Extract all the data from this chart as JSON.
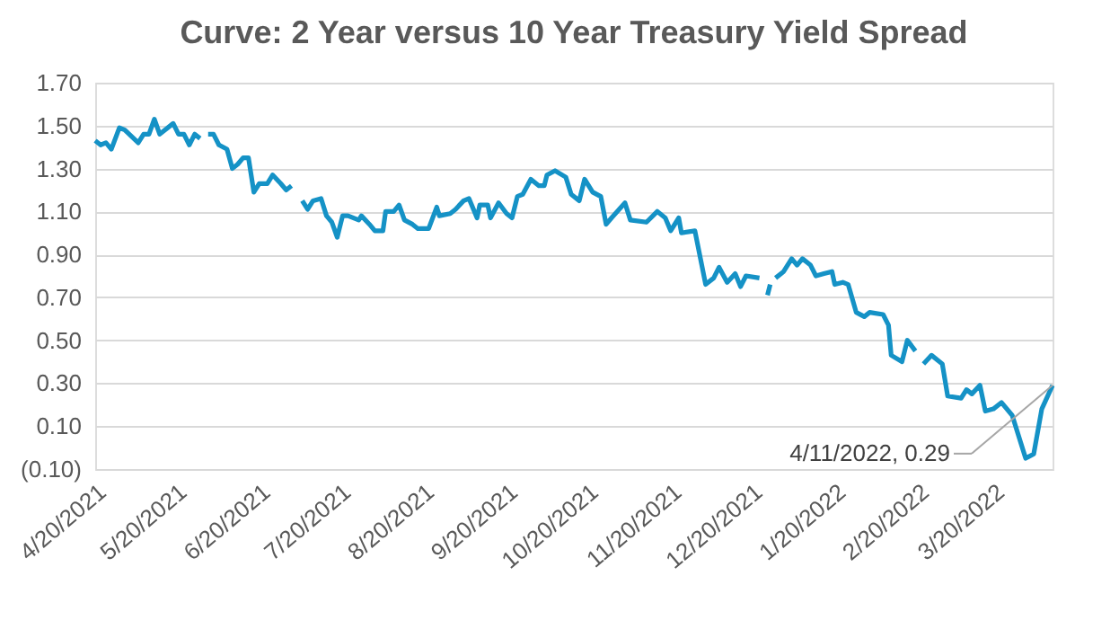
{
  "chart_data": {
    "type": "line",
    "title": "Curve: 2 Year versus 10 Year Treasury Yield Spread",
    "xlim": [
      "2021-04-20",
      "2022-04-11"
    ],
    "xticks": [
      {
        "value": "2021-04-20",
        "label": "4/20/2021"
      },
      {
        "value": "2021-05-20",
        "label": "5/20/2021"
      },
      {
        "value": "2021-06-20",
        "label": "6/20/2021"
      },
      {
        "value": "2021-07-20",
        "label": "7/20/2021"
      },
      {
        "value": "2021-08-20",
        "label": "8/20/2021"
      },
      {
        "value": "2021-09-20",
        "label": "9/20/2021"
      },
      {
        "value": "2021-10-20",
        "label": "10/20/2021"
      },
      {
        "value": "2021-11-20",
        "label": "11/20/2021"
      },
      {
        "value": "2021-12-20",
        "label": "12/20/2021"
      },
      {
        "value": "2022-01-20",
        "label": "1/20/2022"
      },
      {
        "value": "2022-02-20",
        "label": "2/20/2022"
      },
      {
        "value": "2022-03-20",
        "label": "3/20/2022"
      }
    ],
    "ylim": [
      -0.1,
      1.7
    ],
    "yticks": [
      {
        "value": -0.1,
        "label": "(0.10)"
      },
      {
        "value": 0.1,
        "label": "0.10"
      },
      {
        "value": 0.3,
        "label": "0.30"
      },
      {
        "value": 0.5,
        "label": "0.50"
      },
      {
        "value": 0.7,
        "label": "0.70"
      },
      {
        "value": 0.9,
        "label": "0.90"
      },
      {
        "value": 1.1,
        "label": "1.10"
      },
      {
        "value": 1.3,
        "label": "1.30"
      },
      {
        "value": 1.5,
        "label": "1.50"
      },
      {
        "value": 1.7,
        "label": "1.70"
      }
    ],
    "grid": "y",
    "line_style": "solid",
    "marker": "none",
    "annotations": [
      {
        "text": "4/11/2022,  0.29",
        "x": "2022-04-11",
        "y": 0.29
      }
    ],
    "series": [
      {
        "color": "#1592c6",
        "x": [
          "2021-04-20",
          "2021-04-22",
          "2021-04-24",
          "2021-04-26",
          "2021-04-29",
          "2021-05-01",
          "2021-05-06",
          "2021-05-08",
          "2021-05-10",
          "2021-05-12",
          "2021-05-14",
          "2021-05-19",
          "2021-05-21",
          "2021-05-23",
          "2021-05-25",
          "2021-05-27",
          "2021-05-29",
          "2021-05-30",
          "2021-06-01",
          "2021-06-03",
          "2021-06-05",
          "2021-06-08",
          "2021-06-10",
          "2021-06-12",
          "2021-06-14",
          "2021-06-16",
          "2021-06-18",
          "2021-06-20",
          "2021-06-23",
          "2021-06-25",
          "2021-06-28",
          "2021-06-30",
          "2021-07-02",
          "2021-07-04",
          "2021-07-06",
          "2021-07-08",
          "2021-07-10",
          "2021-07-13",
          "2021-07-15",
          "2021-07-17",
          "2021-07-19",
          "2021-07-21",
          "2021-07-23",
          "2021-07-27",
          "2021-07-28",
          "2021-07-31",
          "2021-08-02",
          "2021-08-05",
          "2021-08-06",
          "2021-08-09",
          "2021-08-11",
          "2021-08-13",
          "2021-08-16",
          "2021-08-18",
          "2021-08-22",
          "2021-08-25",
          "2021-08-26",
          "2021-08-30",
          "2021-09-01",
          "2021-09-04",
          "2021-09-06",
          "2021-09-09",
          "2021-09-10",
          "2021-09-13",
          "2021-09-14",
          "2021-09-17",
          "2021-09-20",
          "2021-09-22",
          "2021-09-24",
          "2021-09-26",
          "2021-09-29",
          "2021-10-02",
          "2021-10-04",
          "2021-10-05",
          "2021-10-08",
          "2021-10-12",
          "2021-10-14",
          "2021-10-17",
          "2021-10-19",
          "2021-10-22",
          "2021-10-25",
          "2021-10-27",
          "2021-10-29",
          "2021-11-03",
          "2021-11-05",
          "2021-11-11",
          "2021-11-15",
          "2021-11-18",
          "2021-11-20",
          "2021-11-23",
          "2021-11-24",
          "2021-11-29",
          "2021-12-03",
          "2021-12-06",
          "2021-12-08",
          "2021-12-11",
          "2021-12-14",
          "2021-12-16",
          "2021-12-18",
          "2021-12-23",
          "2021-12-24",
          "2021-12-26",
          "2021-12-27",
          "2021-12-28",
          "2021-12-29",
          "2022-01-01",
          "2022-01-04",
          "2022-01-06",
          "2022-01-08",
          "2022-01-11",
          "2022-01-13",
          "2022-01-16",
          "2022-01-19",
          "2022-01-20",
          "2022-01-23",
          "2022-01-25",
          "2022-01-28",
          "2022-01-31",
          "2022-02-02",
          "2022-02-07",
          "2022-02-09",
          "2022-02-10",
          "2022-02-14",
          "2022-02-16",
          "2022-02-19",
          "2022-02-20",
          "2022-02-22",
          "2022-02-25",
          "2022-03-01",
          "2022-03-03",
          "2022-03-08",
          "2022-03-10",
          "2022-03-12",
          "2022-03-15",
          "2022-03-17",
          "2022-03-20",
          "2022-03-23",
          "2022-03-27",
          "2022-03-30",
          "2022-04-01",
          "2022-04-04",
          "2022-04-07",
          "2022-04-11"
        ],
        "values": [
          1.43,
          1.41,
          1.42,
          1.39,
          1.49,
          1.48,
          1.42,
          1.46,
          1.46,
          1.53,
          1.46,
          1.51,
          1.46,
          1.46,
          1.41,
          1.46,
          1.44,
          null,
          1.46,
          1.46,
          1.41,
          1.39,
          1.3,
          1.32,
          1.35,
          1.35,
          1.19,
          1.23,
          1.23,
          1.27,
          1.23,
          1.2,
          1.22,
          null,
          1.15,
          1.11,
          1.15,
          1.16,
          1.08,
          1.05,
          0.98,
          1.08,
          1.08,
          1.06,
          1.08,
          1.04,
          1.01,
          1.01,
          1.1,
          1.1,
          1.13,
          1.06,
          1.04,
          1.02,
          1.02,
          1.12,
          1.08,
          1.09,
          1.11,
          1.15,
          1.16,
          1.07,
          1.13,
          1.13,
          1.07,
          1.14,
          1.09,
          1.07,
          1.17,
          1.18,
          1.25,
          1.22,
          1.22,
          1.27,
          1.29,
          1.26,
          1.18,
          1.15,
          1.25,
          1.19,
          1.17,
          1.04,
          1.07,
          1.14,
          1.06,
          1.05,
          1.1,
          1.07,
          1.01,
          1.07,
          1.0,
          1.01,
          0.76,
          0.79,
          0.84,
          0.77,
          0.81,
          0.75,
          0.8,
          0.79,
          null,
          0.71,
          0.76,
          null,
          0.79,
          0.82,
          0.88,
          0.85,
          0.88,
          0.85,
          0.8,
          0.81,
          0.82,
          0.76,
          0.77,
          0.76,
          0.63,
          0.61,
          0.63,
          0.62,
          0.57,
          0.43,
          0.4,
          0.5,
          0.45,
          null,
          0.39,
          0.43,
          0.39,
          0.24,
          0.23,
          0.27,
          0.25,
          0.29,
          0.17,
          0.18,
          0.21,
          0.15,
          0.03,
          -0.05,
          -0.03,
          0.18,
          0.29
        ]
      }
    ]
  }
}
